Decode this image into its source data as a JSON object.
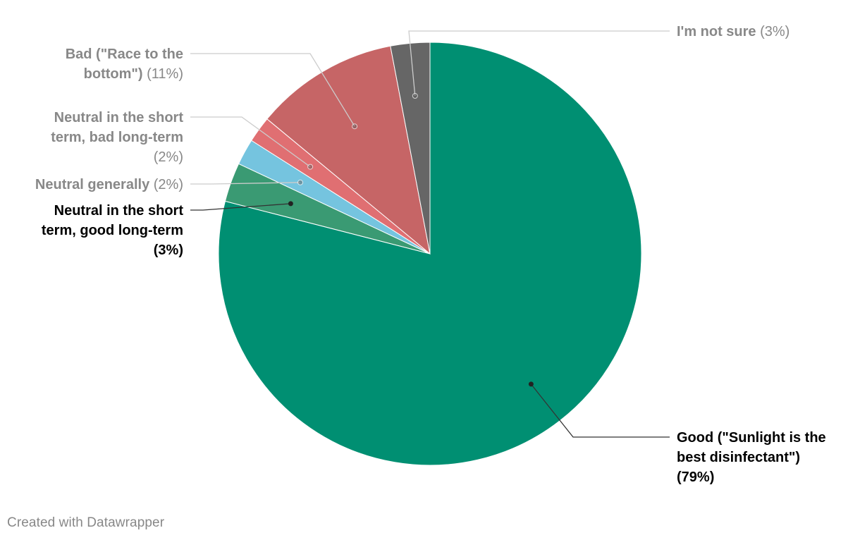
{
  "chart_data": {
    "type": "pie",
    "start_angle_deg": 0,
    "direction": "clockwise",
    "slices": [
      {
        "key": "good",
        "label_name": "Good (\"Sunlight is the best disinfectant\")",
        "label_pct": "(79%)",
        "value": 79,
        "color": "#008f72",
        "label_color": "#000000",
        "label_bold_pct": true
      },
      {
        "key": "neutral-short-good-long",
        "label_name": "Neutral in the short term, good long-term",
        "label_pct": "(3%)",
        "value": 3,
        "color": "#3a9a73",
        "label_color": "#000000",
        "label_bold_pct": true
      },
      {
        "key": "neutral-generally",
        "label_name": "Neutral generally",
        "label_pct": "(2%)",
        "value": 2,
        "color": "#75c4df",
        "label_color": "#888888",
        "label_bold_pct": false
      },
      {
        "key": "neutral-short-bad-long",
        "label_name": "Neutral in the short term, bad long-term",
        "label_pct": "(2%)",
        "value": 2,
        "color": "#e06f72",
        "label_color": "#888888",
        "label_bold_pct": false
      },
      {
        "key": "bad",
        "label_name": "Bad (\"Race to the bottom\")",
        "label_pct": "(11%)",
        "value": 11,
        "color": "#c66566",
        "label_color": "#888888",
        "label_bold_pct": false
      },
      {
        "key": "not-sure",
        "label_name": "I'm not sure",
        "label_pct": "(3%)",
        "value": 3,
        "color": "#666666",
        "label_color": "#888888",
        "label_bold_pct": false
      }
    ]
  },
  "footer": {
    "credit": "Created with Datawrapper"
  }
}
